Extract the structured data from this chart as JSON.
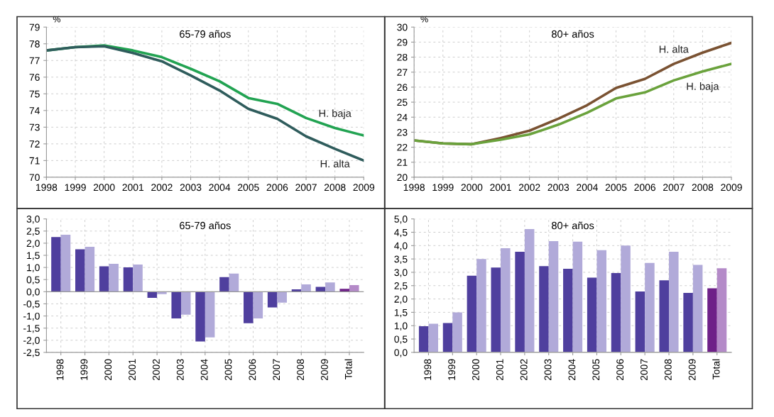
{
  "chart_data": [
    {
      "type": "line",
      "title": "65-79 años",
      "ylabel": "%",
      "x": [
        1998,
        1999,
        2000,
        2001,
        2002,
        2003,
        2004,
        2005,
        2006,
        2007,
        2008,
        2009
      ],
      "series": [
        {
          "name": "H. baja",
          "color": "#22a352",
          "values": [
            77.6,
            77.8,
            77.9,
            77.6,
            77.2,
            76.5,
            75.75,
            74.75,
            74.4,
            73.55,
            72.95,
            72.5
          ]
        },
        {
          "name": "H. alta",
          "color": "#2f5c5c",
          "values": [
            77.6,
            77.8,
            77.85,
            77.45,
            76.95,
            76.1,
            75.2,
            74.1,
            73.5,
            72.45,
            71.7,
            71.0
          ]
        }
      ],
      "xlim": [
        1998,
        2009
      ],
      "xticks": [
        1998,
        1999,
        2000,
        2001,
        2002,
        2003,
        2004,
        2005,
        2006,
        2007,
        2008,
        2009
      ],
      "ylim": [
        70,
        79
      ],
      "yticks": [
        70,
        71,
        72,
        73,
        74,
        75,
        76,
        77,
        78,
        79
      ],
      "grid": true,
      "legend": false
    },
    {
      "type": "line",
      "title": "80+ años",
      "ylabel": "%",
      "x": [
        1998,
        1999,
        2000,
        2001,
        2002,
        2003,
        2004,
        2005,
        2006,
        2007,
        2008,
        2009
      ],
      "series": [
        {
          "name": "H. alta",
          "color": "#7a5232",
          "values": [
            22.45,
            22.25,
            22.2,
            22.6,
            23.1,
            23.9,
            24.8,
            25.95,
            26.55,
            27.55,
            28.3,
            28.95
          ]
        },
        {
          "name": "H. baja",
          "color": "#6aa23c",
          "values": [
            22.45,
            22.25,
            22.2,
            22.5,
            22.85,
            23.5,
            24.3,
            25.25,
            25.65,
            26.45,
            27.05,
            27.55
          ]
        }
      ],
      "xlim": [
        1998,
        2009
      ],
      "xticks": [
        1998,
        1999,
        2000,
        2001,
        2002,
        2003,
        2004,
        2005,
        2006,
        2007,
        2008,
        2009
      ],
      "ylim": [
        20,
        30
      ],
      "yticks": [
        20,
        21,
        22,
        23,
        24,
        25,
        26,
        27,
        28,
        29,
        30
      ],
      "grid": true,
      "legend": false
    },
    {
      "type": "bar",
      "title": "65-79 años",
      "categories": [
        "1998",
        "1999",
        "2000",
        "2001",
        "2002",
        "2003",
        "2004",
        "2005",
        "2006",
        "2007",
        "2008",
        "2009",
        "Total"
      ],
      "series": [
        {
          "color": "#4f3f9e",
          "colors": [
            "#4f3f9e",
            "#4f3f9e",
            "#4f3f9e",
            "#4f3f9e",
            "#4f3f9e",
            "#4f3f9e",
            "#4f3f9e",
            "#4f3f9e",
            "#4f3f9e",
            "#4f3f9e",
            "#4f3f9e",
            "#4f3f9e",
            "#6e2088"
          ],
          "values": [
            2.25,
            1.75,
            1.05,
            1.0,
            -0.25,
            -1.1,
            -2.05,
            0.6,
            -1.3,
            -0.65,
            0.1,
            0.2,
            0.12
          ]
        },
        {
          "color": "#b1aad9",
          "colors": [
            "#b1aad9",
            "#b1aad9",
            "#b1aad9",
            "#b1aad9",
            "#b1aad9",
            "#b1aad9",
            "#b1aad9",
            "#b1aad9",
            "#b1aad9",
            "#b1aad9",
            "#b1aad9",
            "#b1aad9",
            "#b48ac8"
          ],
          "values": [
            2.35,
            1.85,
            1.15,
            1.12,
            -0.1,
            -0.95,
            -1.88,
            0.75,
            -1.1,
            -0.45,
            0.3,
            0.38,
            0.27
          ]
        }
      ],
      "ylim": [
        -2.5,
        3.0
      ],
      "yticks": [
        {
          "value": -2.5,
          "label": "-2,5"
        },
        {
          "value": -2.0,
          "label": "-2,0"
        },
        {
          "value": -1.5,
          "label": "-1,5"
        },
        {
          "value": -1.0,
          "label": "-1,0"
        },
        {
          "value": -0.5,
          "label": "-0,5"
        },
        {
          "value": 0,
          "label": "0,0"
        },
        {
          "value": 0.5,
          "label": "0,5"
        },
        {
          "value": 1.0,
          "label": "1,0"
        },
        {
          "value": 1.5,
          "label": "1,5"
        },
        {
          "value": 2.0,
          "label": "2,0"
        },
        {
          "value": 2.5,
          "label": "2,5"
        },
        {
          "value": 3.0,
          "label": "3,0"
        }
      ],
      "grid": true,
      "legend": false
    },
    {
      "type": "bar",
      "title": "80+ años",
      "categories": [
        "1998",
        "1999",
        "2000",
        "2001",
        "2002",
        "2003",
        "2004",
        "2005",
        "2006",
        "2007",
        "2008",
        "2009",
        "Total"
      ],
      "series": [
        {
          "color": "#4f3f9e",
          "colors": [
            "#4f3f9e",
            "#4f3f9e",
            "#4f3f9e",
            "#4f3f9e",
            "#4f3f9e",
            "#4f3f9e",
            "#4f3f9e",
            "#4f3f9e",
            "#4f3f9e",
            "#4f3f9e",
            "#4f3f9e",
            "#4f3f9e",
            "#6e2088"
          ],
          "values": [
            0.98,
            1.1,
            2.87,
            3.18,
            3.77,
            3.23,
            3.13,
            2.8,
            2.97,
            2.28,
            2.7,
            2.23,
            2.4
          ]
        },
        {
          "color": "#b1aad9",
          "colors": [
            "#b1aad9",
            "#b1aad9",
            "#b1aad9",
            "#b1aad9",
            "#b1aad9",
            "#b1aad9",
            "#b1aad9",
            "#b1aad9",
            "#b1aad9",
            "#b1aad9",
            "#b1aad9",
            "#b1aad9",
            "#b48ac8"
          ],
          "values": [
            1.07,
            1.5,
            3.5,
            3.9,
            4.62,
            4.17,
            4.15,
            3.83,
            4.0,
            3.35,
            3.77,
            3.28,
            3.15
          ]
        }
      ],
      "ylim": [
        0,
        5.0
      ],
      "yticks": [
        {
          "value": 0,
          "label": "0,0"
        },
        {
          "value": 0.5,
          "label": "0,5"
        },
        {
          "value": 1.0,
          "label": "1,0"
        },
        {
          "value": 1.5,
          "label": "1,5"
        },
        {
          "value": 2.0,
          "label": "2,0"
        },
        {
          "value": 2.5,
          "label": "2,5"
        },
        {
          "value": 3.0,
          "label": "3,0"
        },
        {
          "value": 3.5,
          "label": "3,5"
        },
        {
          "value": 4.0,
          "label": "4,0"
        },
        {
          "value": 4.5,
          "label": "4,5"
        },
        {
          "value": 5.0,
          "label": "5,0"
        }
      ],
      "grid": true,
      "legend": false
    }
  ]
}
